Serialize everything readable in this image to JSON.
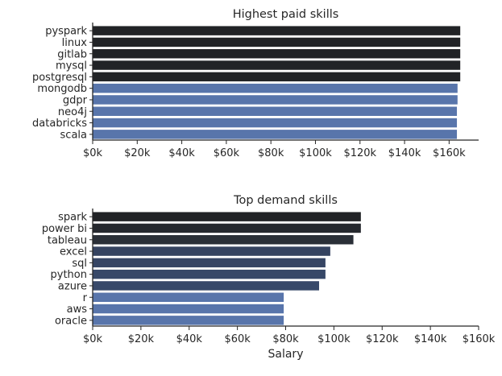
{
  "chart_data": [
    {
      "type": "bar",
      "orientation": "horizontal",
      "title": "Highest paid skills",
      "xlabel": "",
      "ylabel": "",
      "categories": [
        "pyspark",
        "linux",
        "gitlab",
        "mysql",
        "postgresql",
        "mongodb",
        "gdpr",
        "neo4j",
        "databricks",
        "scala"
      ],
      "values": [
        165000,
        165000,
        165000,
        165000,
        165000,
        163782,
        163782,
        163500,
        163500,
        163500
      ],
      "colors": [
        "#212326",
        "#212326",
        "#212326",
        "#212326",
        "#212326",
        "#5875ab",
        "#5875ab",
        "#5875ab",
        "#5875ab",
        "#5875ab"
      ],
      "xlim": [
        0,
        173250
      ],
      "xticks": [
        0,
        20000,
        40000,
        60000,
        80000,
        100000,
        120000,
        140000,
        160000
      ],
      "xtick_labels": [
        "$0k",
        "$20k",
        "$40k",
        "$60k",
        "$80k",
        "$100k",
        "$120k",
        "$140k",
        "$160k"
      ],
      "spines": "left-bottom",
      "grid": false
    },
    {
      "type": "bar",
      "orientation": "horizontal",
      "title": "Top demand skills",
      "xlabel": "Salary",
      "ylabel": "",
      "categories": [
        "spark",
        "power bi",
        "tableau",
        "excel",
        "sql",
        "python",
        "azure",
        "r",
        "aws",
        "oracle"
      ],
      "values": [
        111175,
        111175,
        108087,
        98500,
        96500,
        96500,
        93864,
        79200,
        79200,
        79200
      ],
      "colors": [
        "#212326",
        "#25282e",
        "#2a2f37",
        "#354360",
        "#364564",
        "#374868",
        "#38496a",
        "#5875ab",
        "#5875ab",
        "#5875ab"
      ],
      "xlim": [
        0,
        160000
      ],
      "xticks": [
        0,
        20000,
        40000,
        60000,
        80000,
        100000,
        120000,
        140000,
        160000
      ],
      "xtick_labels": [
        "$0k",
        "$20k",
        "$40k",
        "$60k",
        "$80k",
        "$100k",
        "$120k",
        "$140k",
        "$160k"
      ],
      "spines": "left-bottom",
      "grid": false
    }
  ]
}
